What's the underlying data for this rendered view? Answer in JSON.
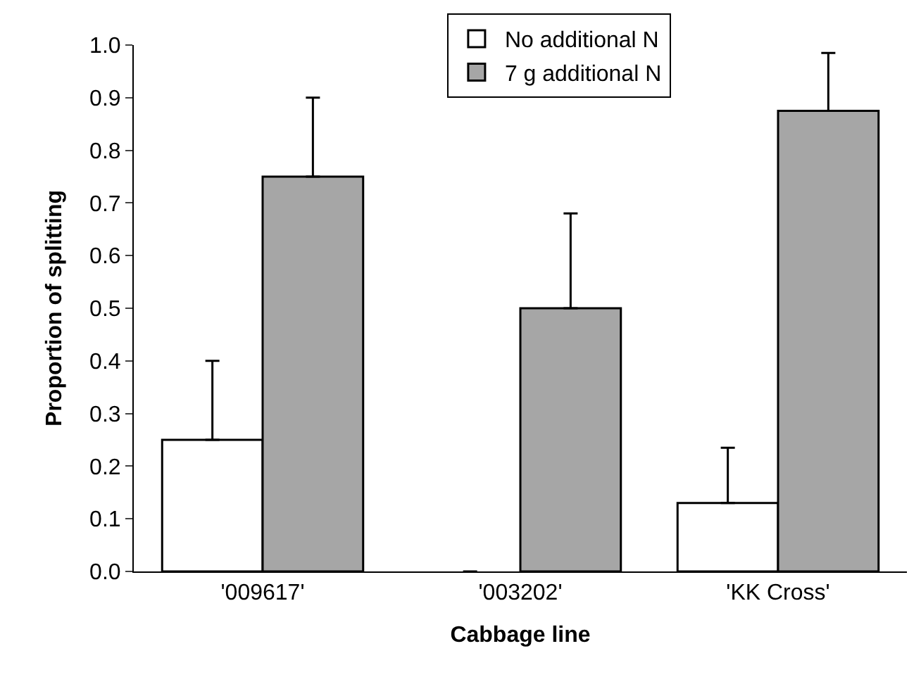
{
  "chart_data": {
    "type": "bar",
    "xlabel": "Cabbage line",
    "ylabel": "Proportion of splitting",
    "categories": [
      "'009617'",
      "'003202'",
      "'KK Cross'"
    ],
    "series": [
      {
        "name": "No additional N",
        "color": "#ffffff",
        "values": [
          0.25,
          0,
          0.13
        ],
        "errors": [
          [
            0.25,
            0.4
          ],
          null,
          [
            0.13,
            0.235
          ]
        ]
      },
      {
        "name": "7 g additional N",
        "color": "#a6a6a6",
        "values": [
          0.75,
          0.5,
          0.875
        ],
        "errors": [
          [
            0.75,
            0.9
          ],
          [
            0.5,
            0.68
          ],
          [
            0.875,
            0.985
          ]
        ]
      }
    ],
    "ylim": [
      0,
      1.0
    ],
    "yticks": [
      {
        "value": 0,
        "label": "0.0"
      },
      0.1,
      0.2,
      0.3,
      0.4,
      0.5,
      0.6,
      0.7,
      0.8,
      0.9,
      {
        "value": 1,
        "label": "1.0"
      }
    ],
    "legend": "top"
  }
}
